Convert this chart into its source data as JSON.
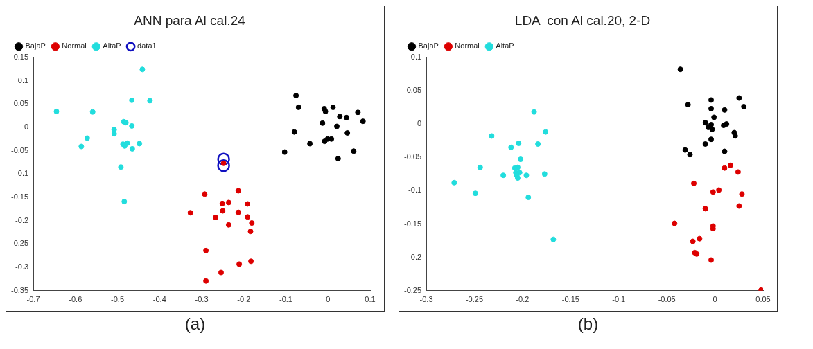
{
  "chart_data": [
    {
      "type": "scatter",
      "title": "ANN para Al cal.24",
      "annotations": [
        "(a)"
      ],
      "legend": "top left",
      "marker": "circle",
      "grid": false,
      "xlim": [
        -0.7,
        0.1
      ],
      "xticks": [
        -0.7,
        -0.6,
        -0.5,
        -0.4,
        -0.3,
        -0.2,
        -0.1,
        0,
        0.1
      ],
      "ylim": [
        -0.35,
        0.15
      ],
      "yticks": [
        -0.35,
        -0.3,
        -0.25,
        -0.2,
        -0.15,
        -0.1,
        -0.05,
        0,
        0.05,
        0.1,
        0.15
      ],
      "series": [
        {
          "name": "BajaP",
          "color": "#000000",
          "x": [
            -0.076,
            -0.07,
            -0.009,
            0.012,
            -0.006,
            0.071,
            0.083,
            0.028,
            0.044,
            -0.013,
            0.021,
            -0.08,
            0.046,
            -0.043,
            -0.008,
            -0.001,
            0.008,
            -0.103,
            0.061,
            0.024
          ],
          "values": [
            0.068,
            0.043,
            0.04,
            0.043,
            0.034,
            0.032,
            0.013,
            0.023,
            0.021,
            0.009,
            0.002,
            -0.01,
            -0.012,
            -0.035,
            -0.03,
            -0.025,
            -0.025,
            -0.053,
            -0.051,
            -0.067
          ]
        },
        {
          "name": "Normal",
          "color": "#dd0000",
          "x": [
            -0.248,
            -0.293,
            -0.213,
            -0.251,
            -0.236,
            -0.191,
            -0.327,
            -0.25,
            -0.213,
            -0.267,
            -0.191,
            -0.181,
            -0.236,
            -0.184,
            -0.29,
            -0.183,
            -0.211,
            -0.254,
            -0.29
          ],
          "values": [
            -0.077,
            -0.143,
            -0.136,
            -0.163,
            -0.161,
            -0.164,
            -0.183,
            -0.179,
            -0.182,
            -0.193,
            -0.192,
            -0.205,
            -0.209,
            -0.223,
            -0.264,
            -0.287,
            -0.293,
            -0.311,
            -0.329
          ]
        },
        {
          "name": "AltaP",
          "color": "#22dddd",
          "x": [
            -0.441,
            -0.466,
            -0.423,
            -0.645,
            -0.559,
            -0.485,
            -0.48,
            -0.466,
            -0.508,
            -0.508,
            -0.572,
            -0.586,
            -0.487,
            -0.477,
            -0.483,
            -0.465,
            -0.448,
            -0.492,
            -0.484
          ],
          "values": [
            0.124,
            0.058,
            0.057,
            0.034,
            0.033,
            0.012,
            0.01,
            0.003,
            -0.005,
            -0.014,
            -0.023,
            -0.041,
            -0.036,
            -0.034,
            -0.04,
            -0.046,
            -0.035,
            -0.085,
            -0.159
          ]
        },
        {
          "name": "data1",
          "color": "#1010c0",
          "x": [
            -0.248,
            -0.248
          ],
          "values": [
            -0.068,
            -0.082
          ]
        }
      ]
    },
    {
      "type": "scatter",
      "title": "LDA  con Al cal.20, 2-D",
      "annotations": [
        "(b)"
      ],
      "legend": "top left",
      "marker": "circle",
      "grid": false,
      "xlim": [
        -0.3,
        0.05
      ],
      "xticks": [
        -0.3,
        -0.25,
        -0.2,
        -0.15,
        -0.1,
        -0.05,
        0,
        0.05
      ],
      "ylim": [
        -0.25,
        0.1
      ],
      "yticks": [
        -0.25,
        -0.2,
        -0.15,
        -0.1,
        -0.05,
        0,
        0.05,
        0.1
      ],
      "series": [
        {
          "name": "BajaP",
          "color": "#000000",
          "x": [
            -0.036,
            0.025,
            0.03,
            -0.028,
            -0.004,
            -0.004,
            0.01,
            -0.001,
            -0.01,
            -0.004,
            -0.007,
            -0.003,
            0.009,
            0.012,
            0.02,
            0.021,
            -0.004,
            -0.01,
            -0.031,
            -0.026,
            0.01
          ],
          "values": [
            0.082,
            0.039,
            0.026,
            0.029,
            0.036,
            0.023,
            0.021,
            0.01,
            0.002,
            -0.001,
            -0.005,
            -0.008,
            -0.002,
            0.0,
            -0.013,
            -0.018,
            -0.023,
            -0.03,
            -0.039,
            -0.046,
            -0.041
          ]
        },
        {
          "name": "Normal",
          "color": "#dd0000",
          "x": [
            0.016,
            0.01,
            0.024,
            -0.022,
            0.004,
            -0.002,
            0.028,
            0.025,
            -0.01,
            -0.042,
            -0.002,
            -0.002,
            -0.016,
            -0.023,
            -0.021,
            -0.019,
            -0.004,
            0.048
          ],
          "values": [
            -0.062,
            -0.066,
            -0.072,
            -0.089,
            -0.099,
            -0.102,
            -0.105,
            -0.123,
            -0.127,
            -0.149,
            -0.153,
            -0.157,
            -0.172,
            -0.176,
            -0.193,
            -0.195,
            -0.204,
            -0.249
          ]
        },
        {
          "name": "AltaP",
          "color": "#22dddd",
          "x": [
            -0.188,
            -0.176,
            -0.232,
            -0.204,
            -0.184,
            -0.212,
            -0.202,
            -0.244,
            -0.208,
            -0.205,
            -0.22,
            -0.207,
            -0.203,
            -0.206,
            -0.205,
            -0.196,
            -0.177,
            -0.271,
            -0.249,
            -0.194,
            -0.168
          ],
          "values": [
            0.018,
            -0.012,
            -0.018,
            -0.029,
            -0.03,
            -0.035,
            -0.053,
            -0.065,
            -0.066,
            -0.065,
            -0.077,
            -0.073,
            -0.073,
            -0.077,
            -0.081,
            -0.077,
            -0.075,
            -0.088,
            -0.104,
            -0.11,
            -0.173
          ]
        }
      ]
    }
  ]
}
